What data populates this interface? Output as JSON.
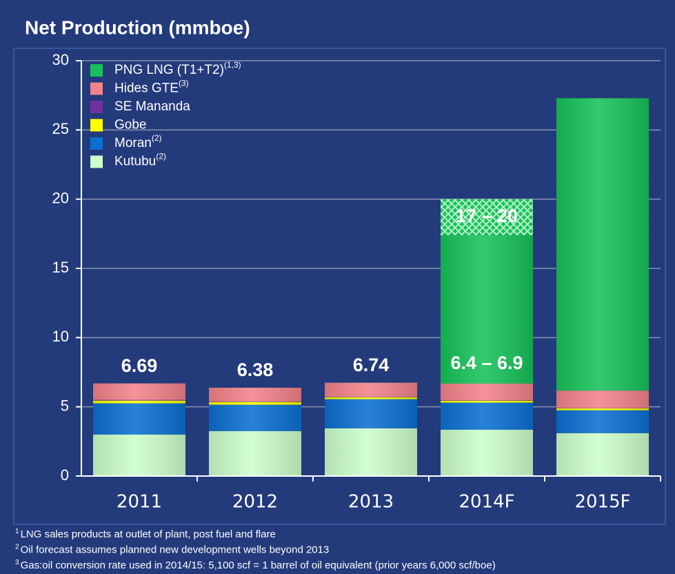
{
  "chart_data": {
    "type": "stacked_bar",
    "title": "Net Production (mmboe)",
    "categories": [
      "2011",
      "2012",
      "2013",
      "2014F",
      "2015F"
    ],
    "series": [
      {
        "name": "PNG LNG (T1+T2)",
        "name_sup": "(1,3)",
        "color": "#17c25a",
        "values": [
          0,
          0,
          0,
          10.72,
          21.12
        ]
      },
      {
        "name": "Hides GTE",
        "name_sup": "(3)",
        "color": "#f2838a",
        "values": [
          1.19,
          1.0,
          1.01,
          1.2,
          1.25
        ]
      },
      {
        "name": "SE Mananda",
        "color": "#7030a0",
        "values": [
          0.05,
          0.03,
          0.03,
          0.03,
          0.02
        ]
      },
      {
        "name": "Gobe",
        "color": "#ffff00",
        "values": [
          0.2,
          0.2,
          0.15,
          0.15,
          0.15
        ]
      },
      {
        "name": "Moran",
        "name_sup": "(2)",
        "color": "#0b70d2",
        "values": [
          2.25,
          1.9,
          2.1,
          1.95,
          1.65
        ]
      },
      {
        "name": "Kutubu",
        "name_sup": "(2)",
        "color": "#ccffcc",
        "values": [
          3.0,
          3.25,
          3.45,
          3.35,
          3.1
        ]
      }
    ],
    "ranges": [
      {
        "category": 3,
        "low": 17.4,
        "high": 20,
        "label": "17 – 20"
      }
    ],
    "annotations": [
      {
        "category": 0,
        "text": "6.69"
      },
      {
        "category": 1,
        "text": "6.38"
      },
      {
        "category": 2,
        "text": "6.74"
      },
      {
        "category": 3,
        "text": "6.4 – 6.9"
      }
    ],
    "ylim": [
      0,
      30
    ],
    "yticks": [
      0,
      5,
      10,
      15,
      20,
      25,
      30
    ],
    "grid": true,
    "legend": "top-left"
  },
  "footnotes": [
    {
      "mark": "1",
      "text": "LNG sales products at outlet of plant, post fuel and flare"
    },
    {
      "mark": "2",
      "text": "Oil forecast assumes planned new development wells beyond 2013"
    },
    {
      "mark": "3",
      "text": "Gas:oil conversion rate used in 2014/15: 5,100 scf = 1 barrel of oil equivalent (prior years 6,000 scf/boe)"
    }
  ]
}
